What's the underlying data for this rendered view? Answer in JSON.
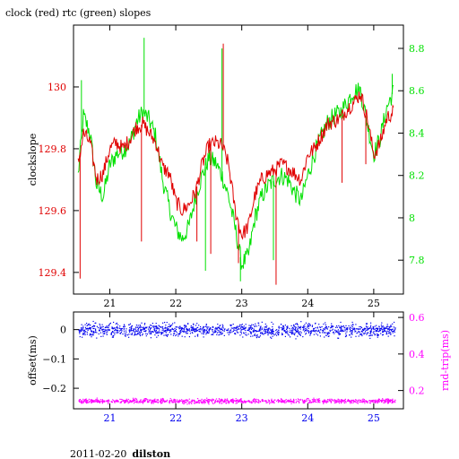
{
  "title": "clock (red) rtc (green) slopes",
  "footer": {
    "date": "2011-02-20",
    "host": "dilston"
  },
  "colors": {
    "clock": "#e00000",
    "rtc": "#00e000",
    "offset": "#0000ee",
    "rtt": "#ff00ff",
    "axis": "#000000",
    "bottom_x_ticks": "#0000ee"
  },
  "chart_data": [
    {
      "type": "line",
      "title": "clock (red) rtc (green) slopes",
      "xlabel": "",
      "ylabel": "clockslope",
      "y2label": "",
      "xlim": [
        20.45,
        25.45
      ],
      "ylim": [
        129.33,
        130.2
      ],
      "y2lim": [
        7.64,
        8.91
      ],
      "x_ticks": [
        21,
        22,
        23,
        24,
        25
      ],
      "x_tick_labels": [
        "21",
        "22",
        "23",
        "24",
        "25"
      ],
      "y_ticks": [
        129.4,
        129.6,
        129.8,
        130
      ],
      "y_tick_labels": [
        "129.4",
        "129.6",
        "129.8",
        "130"
      ],
      "y2_ticks": [
        7.8,
        8.0,
        8.2,
        8.4,
        8.6,
        8.8
      ],
      "y2_tick_labels": [
        "7.8",
        "8",
        "8.2",
        "8.4",
        "8.6",
        "8.8"
      ],
      "grid": false,
      "series": [
        {
          "name": "clock",
          "axis": "left",
          "x": [
            20.52,
            20.6,
            20.7,
            20.8,
            20.9,
            21.0,
            21.1,
            21.2,
            21.3,
            21.4,
            21.5,
            21.6,
            21.7,
            21.8,
            21.9,
            22.0,
            22.1,
            22.2,
            22.3,
            22.4,
            22.5,
            22.6,
            22.7,
            22.8,
            22.9,
            23.0,
            23.1,
            23.2,
            23.3,
            23.4,
            23.5,
            23.6,
            23.7,
            23.8,
            23.9,
            24.0,
            24.1,
            24.2,
            24.3,
            24.4,
            24.5,
            24.6,
            24.7,
            24.8,
            24.9,
            25.0,
            25.1,
            25.2,
            25.3
          ],
          "values": [
            129.75,
            129.85,
            129.82,
            129.7,
            129.72,
            129.8,
            129.82,
            129.8,
            129.83,
            129.87,
            129.88,
            129.85,
            129.82,
            129.74,
            129.72,
            129.63,
            129.6,
            129.62,
            129.66,
            129.75,
            129.81,
            129.82,
            129.81,
            129.75,
            129.6,
            129.52,
            129.55,
            129.65,
            129.7,
            129.72,
            129.73,
            129.75,
            129.74,
            129.72,
            129.7,
            129.78,
            129.8,
            129.84,
            129.88,
            129.89,
            129.9,
            129.93,
            129.95,
            129.98,
            129.9,
            129.78,
            129.82,
            129.9,
            129.92
          ],
          "spikes": [
            [
              20.55,
              129.38
            ],
            [
              21.48,
              129.5
            ],
            [
              22.32,
              129.5
            ],
            [
              22.53,
              129.46
            ],
            [
              22.72,
              130.14
            ],
            [
              22.95,
              129.43
            ],
            [
              23.52,
              129.36
            ],
            [
              24.52,
              129.69
            ],
            [
              24.88,
              129.75
            ]
          ]
        },
        {
          "name": "rtc",
          "axis": "right",
          "x": [
            20.52,
            20.6,
            20.7,
            20.8,
            20.9,
            21.0,
            21.1,
            21.2,
            21.3,
            21.4,
            21.5,
            21.6,
            21.7,
            21.8,
            21.9,
            22.0,
            22.1,
            22.2,
            22.3,
            22.4,
            22.5,
            22.6,
            22.7,
            22.8,
            22.9,
            23.0,
            23.1,
            23.2,
            23.3,
            23.4,
            23.5,
            23.6,
            23.7,
            23.8,
            23.9,
            24.0,
            24.1,
            24.2,
            24.3,
            24.4,
            24.5,
            24.6,
            24.7,
            24.8,
            24.9,
            25.0,
            25.1,
            25.2,
            25.3
          ],
          "values": [
            8.2,
            8.48,
            8.4,
            8.15,
            8.1,
            8.25,
            8.3,
            8.32,
            8.35,
            8.45,
            8.5,
            8.46,
            8.38,
            8.18,
            8.05,
            7.95,
            7.9,
            7.96,
            8.1,
            8.2,
            8.28,
            8.26,
            8.2,
            8.1,
            7.95,
            7.78,
            7.82,
            8.0,
            8.1,
            8.15,
            8.18,
            8.2,
            8.18,
            8.12,
            8.08,
            8.2,
            8.3,
            8.38,
            8.45,
            8.48,
            8.5,
            8.55,
            8.6,
            8.6,
            8.45,
            8.3,
            8.38,
            8.52,
            8.6
          ],
          "spikes": [
            [
              20.57,
              8.65
            ],
            [
              21.52,
              8.85
            ],
            [
              22.45,
              7.75
            ],
            [
              22.7,
              8.8
            ],
            [
              22.98,
              7.7
            ],
            [
              23.48,
              7.8
            ],
            [
              25.28,
              8.68
            ]
          ]
        }
      ]
    },
    {
      "type": "scatter",
      "xlabel": "",
      "ylabel": "offset(ms)",
      "y2label": "rnd-trip(ms)",
      "xlim": [
        20.45,
        25.45
      ],
      "ylim": [
        -0.27,
        0.06
      ],
      "y2lim": [
        0.1,
        0.63
      ],
      "x_ticks": [
        21,
        22,
        23,
        24,
        25
      ],
      "x_tick_labels": [
        "21",
        "22",
        "23",
        "24",
        "25"
      ],
      "y_ticks": [
        0,
        -0.1,
        -0.2
      ],
      "y_tick_labels": [
        "0",
        "−0.1",
        "−0.2"
      ],
      "y2_ticks": [
        0.2,
        0.4,
        0.6
      ],
      "y2_tick_labels": [
        "0.2",
        "0.4",
        "0.6"
      ],
      "grid": false,
      "series": [
        {
          "name": "offset",
          "axis": "left",
          "x_range": [
            20.52,
            25.32
          ],
          "center": 0.0,
          "spread": 0.022
        },
        {
          "name": "rnd-trip",
          "axis": "right",
          "x_range": [
            20.52,
            25.32
          ],
          "center": 0.145,
          "spread": 0.012
        }
      ]
    }
  ]
}
